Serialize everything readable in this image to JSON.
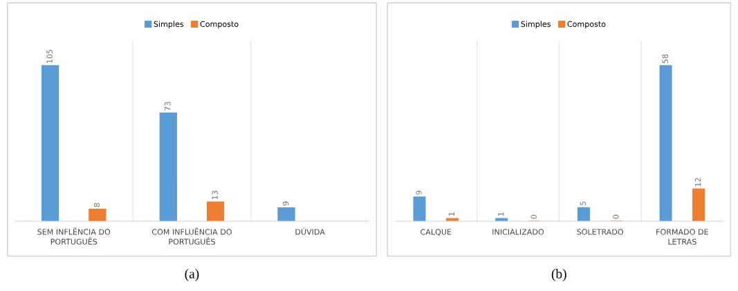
{
  "chart_data": [
    {
      "type": "bar",
      "title": "(a)",
      "categories": [
        "SEM INFLÊNCIA DO\nPORTUGUÊS",
        "COM INFLUÊNCIA DO\nPORTUGUÊS",
        "DÚVIDA"
      ],
      "series": [
        {
          "name": "Simples",
          "color": "#5b9bd5",
          "values": [
            105,
            73,
            9
          ]
        },
        {
          "name": "Composto",
          "color": "#ed7d31",
          "values": [
            8,
            13,
            null
          ]
        }
      ],
      "data_labels": true,
      "legend": "top",
      "grid": false
    },
    {
      "type": "bar",
      "title": "(b)",
      "categories": [
        "CALQUE",
        "INICIALIZADO",
        "SOLETRADO",
        "FORMADO DE\nLETRAS"
      ],
      "series": [
        {
          "name": "Simples",
          "color": "#5b9bd5",
          "values": [
            9,
            1,
            5,
            58
          ]
        },
        {
          "name": "Composto",
          "color": "#ed7d31",
          "values": [
            1,
            0,
            0,
            12
          ]
        }
      ],
      "data_labels": true,
      "legend": "top",
      "grid": false
    }
  ]
}
